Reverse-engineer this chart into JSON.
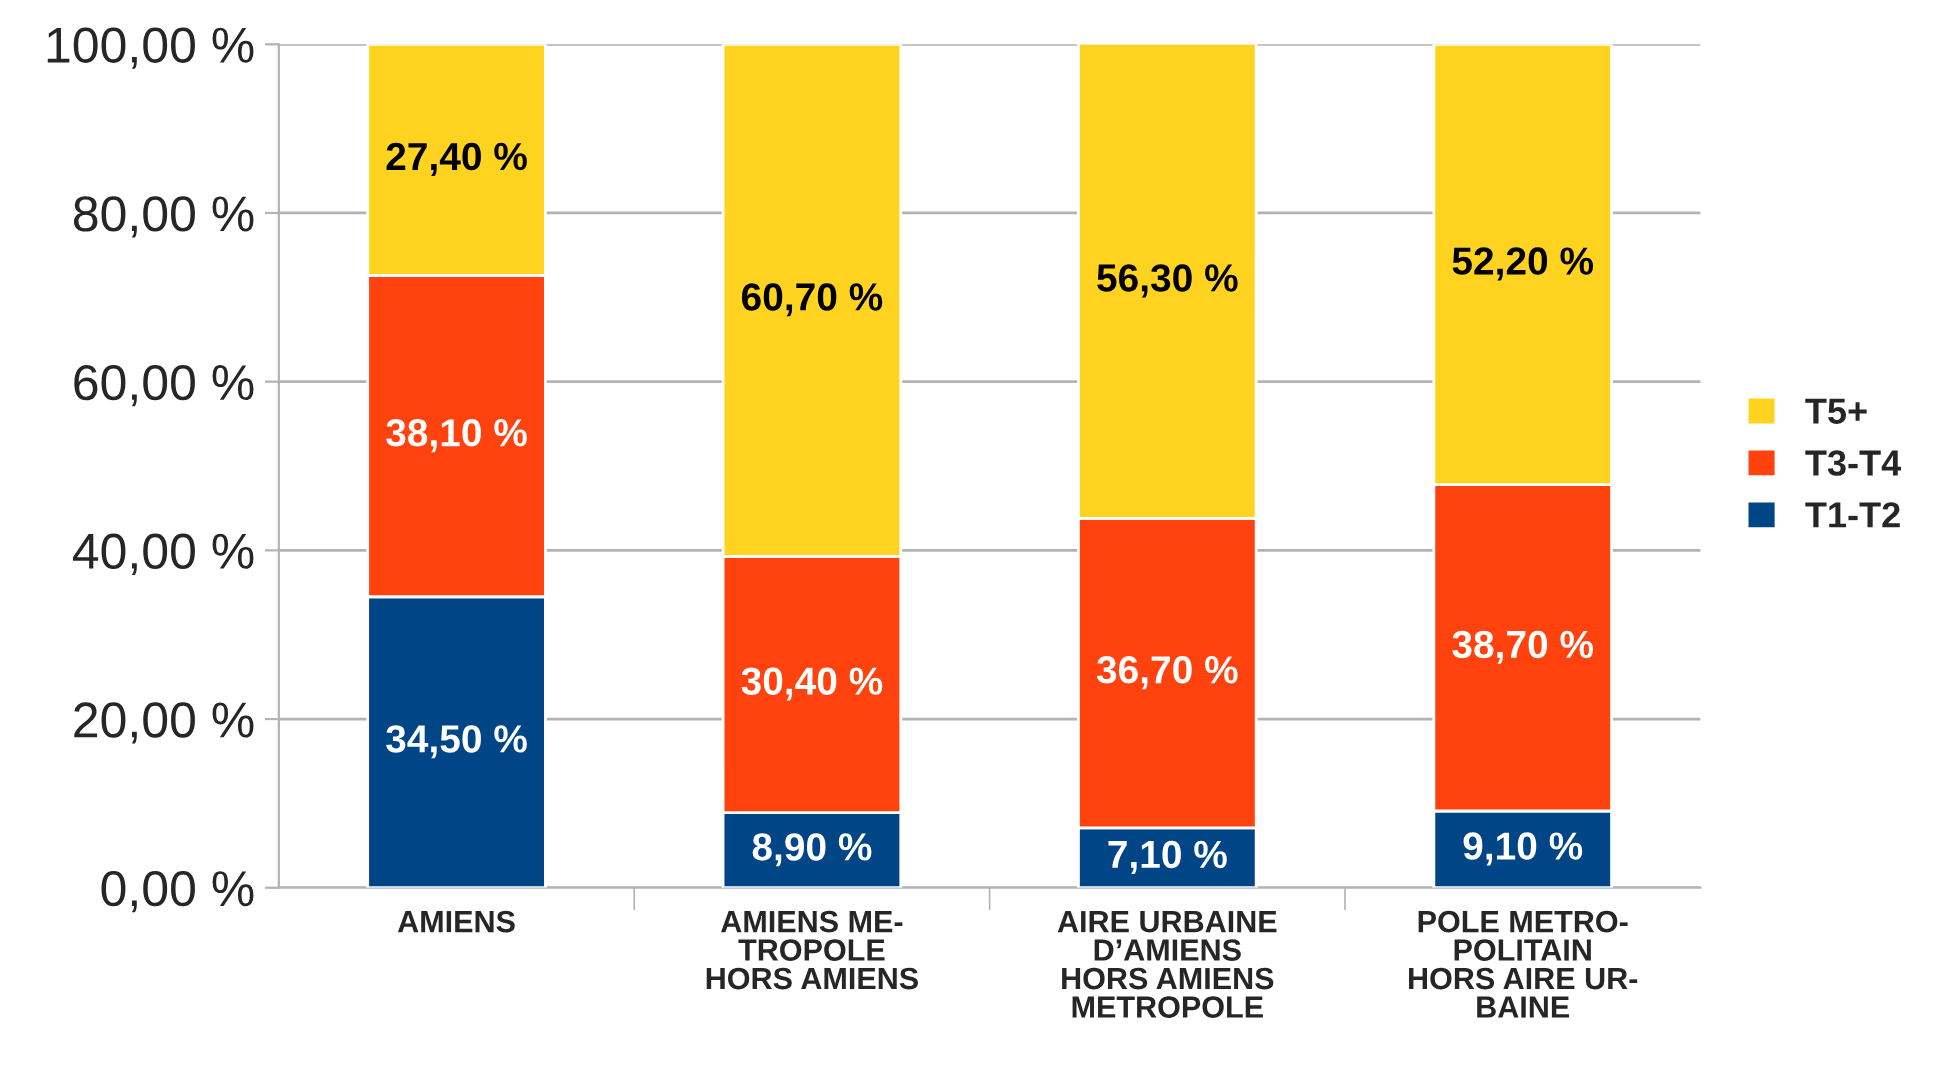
{
  "chart_data": {
    "type": "bar",
    "stacked": true,
    "categories": [
      "AMIENS",
      "AMIENS ME-\nTROPOLE\nHORS AMIENS",
      "AIRE URBAINE\nD’AMIENS\nHORS AMIENS\nMETROPOLE",
      "POLE METRO-\nPOLITAIN\nHORS AIRE UR-\nBAINE"
    ],
    "series": [
      {
        "name": "T1-T2",
        "color": "#004586",
        "values": [
          34.5,
          8.9,
          7.1,
          9.1
        ],
        "value_labels": [
          "34,50 %",
          "8,90 %",
          "7,10 %",
          "9,10 %"
        ]
      },
      {
        "name": "T3-T4",
        "color": "#ff420e",
        "values": [
          38.1,
          30.4,
          36.7,
          38.7
        ],
        "value_labels": [
          "38,10 %",
          "30,40 %",
          "36,70 %",
          "38,70 %"
        ]
      },
      {
        "name": "T5+",
        "color": "#ffd320",
        "values": [
          27.4,
          60.7,
          56.3,
          52.2
        ],
        "value_labels": [
          "27,40 %",
          "60,70 %",
          "56,30 %",
          "52,20 %"
        ]
      }
    ],
    "ylim": [
      0,
      100
    ],
    "yticks": [
      {
        "value": 0,
        "label": "0,00 %"
      },
      {
        "value": 20,
        "label": "20,00 %"
      },
      {
        "value": 40,
        "label": "40,00 %"
      },
      {
        "value": 60,
        "label": "60,00 %"
      },
      {
        "value": 80,
        "label": "80,00 %"
      },
      {
        "value": 100,
        "label": "100,00 %"
      }
    ],
    "grid": "y",
    "legend": "right"
  }
}
